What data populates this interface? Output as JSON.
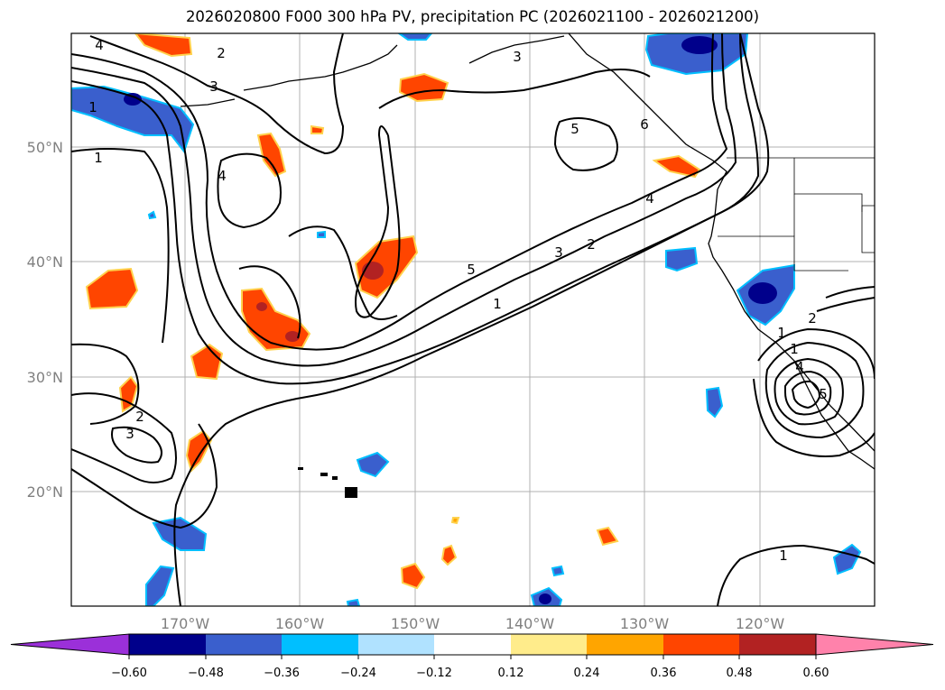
{
  "title": "2026020800 F000 300 hPa PV, precipitation PC (2026021100 - 2026021200)",
  "map": {
    "lat_labels": [
      "50°N",
      "40°N",
      "30°N",
      "20°N"
    ],
    "lon_labels": [
      "170°W",
      "160°W",
      "150°W",
      "140°W",
      "130°W",
      "120°W"
    ],
    "gridlines": true
  },
  "contours": {
    "field": "300 hPa PV",
    "labels": [
      "4",
      "2",
      "3",
      "1",
      "1",
      "4",
      "3",
      "5",
      "6",
      "4",
      "5",
      "3",
      "2",
      "1",
      "2",
      "3",
      "1",
      "2",
      "1",
      "4",
      "5",
      "1"
    ]
  },
  "colorbar": {
    "ticks": [
      "−0.60",
      "−0.48",
      "−0.36",
      "−0.24",
      "−0.12",
      "0.12",
      "0.24",
      "0.36",
      "0.48",
      "0.60"
    ],
    "colors": [
      "#9b30d9",
      "#00008b",
      "#3a5fcd",
      "#00bfff",
      "#b0e2ff",
      "#ffffff",
      "#ffec8b",
      "#ffa500",
      "#ff4500",
      "#b22222",
      "#ff82ab"
    ],
    "extend": "both"
  }
}
